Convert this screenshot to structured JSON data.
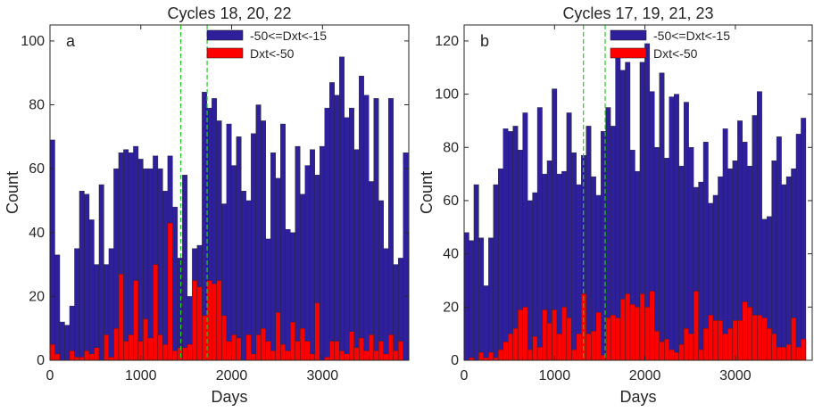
{
  "colors": {
    "bar_major": "#2e1f9b",
    "bar_minor": "#ff0000",
    "vline": "#22cc22",
    "axis": "#262626",
    "bar_edge": "#262626"
  },
  "chart_data": [
    {
      "type": "bar",
      "panel_label": "a",
      "title": "Cycles 18, 20, 22",
      "xlabel": "Days",
      "ylabel": "Count",
      "xlim": [
        0,
        3950
      ],
      "ylim": [
        0,
        105
      ],
      "xticks": [
        0,
        1000,
        2000,
        3000
      ],
      "yticks": [
        0,
        20,
        40,
        60,
        80,
        100
      ],
      "bin_width": 54,
      "vlines": [
        1440,
        1730
      ],
      "legend_position": "top-right",
      "series": [
        {
          "name": "-50<=Dxt<-15",
          "color": "#2e1f9b",
          "values": [
            69,
            33,
            12,
            11,
            17,
            35,
            53,
            52,
            44,
            30,
            55,
            30,
            35,
            60,
            65,
            66,
            65,
            67,
            63,
            60,
            60,
            64,
            60,
            53,
            64,
            48,
            32,
            58,
            20,
            35,
            36,
            84,
            79,
            82,
            75,
            49,
            74,
            61,
            70,
            53,
            50,
            71,
            80,
            75,
            38,
            65,
            57,
            74,
            41,
            40,
            67,
            52,
            61,
            66,
            58,
            67,
            79,
            87,
            83,
            95,
            76,
            79,
            66,
            89,
            83,
            56,
            82,
            50,
            35,
            82,
            30,
            32,
            65,
            40,
            73
          ]
        },
        {
          "name": "Dxt<-50",
          "color": "#ff0000",
          "values": [
            5,
            2,
            0,
            0,
            3,
            1,
            1,
            3,
            2,
            4,
            0,
            8,
            1,
            10,
            27,
            6,
            8,
            25,
            6,
            13,
            7,
            30,
            8,
            5,
            43,
            3,
            4,
            4,
            5,
            25,
            23,
            14,
            25,
            24,
            25,
            14,
            6,
            8,
            7,
            0,
            8,
            2,
            8,
            10,
            6,
            3,
            15,
            5,
            3,
            12,
            6,
            10,
            6,
            2,
            18,
            0,
            1,
            6,
            6,
            3,
            2,
            9,
            4,
            7,
            3,
            8,
            3,
            6,
            2,
            8,
            3,
            6,
            0,
            9,
            0
          ]
        }
      ]
    },
    {
      "type": "bar",
      "panel_label": "b",
      "title": "Cycles 17, 19, 21, 23",
      "xlabel": "Days",
      "ylabel": "Count",
      "xlim": [
        0,
        3850
      ],
      "ylim": [
        0,
        126
      ],
      "xticks": [
        0,
        1000,
        2000,
        3000
      ],
      "yticks": [
        0,
        20,
        40,
        60,
        80,
        100,
        120
      ],
      "bin_width": 54,
      "vlines": [
        1320,
        1560
      ],
      "legend_position": "top-right",
      "series": [
        {
          "name": "-50<=Dxt<-15",
          "color": "#2e1f9b",
          "values": [
            48,
            45,
            66,
            46,
            28,
            46,
            66,
            72,
            87,
            86,
            88,
            79,
            93,
            60,
            63,
            95,
            70,
            75,
            102,
            70,
            71,
            93,
            78,
            66,
            77,
            88,
            69,
            62,
            86,
            95,
            88,
            117,
            109,
            112,
            79,
            71,
            112,
            119,
            101,
            80,
            108,
            76,
            99,
            100,
            73,
            97,
            80,
            65,
            67,
            82,
            59,
            62,
            69,
            87,
            72,
            75,
            90,
            82,
            73,
            92,
            101,
            53,
            54,
            75,
            84,
            66,
            69,
            72,
            85,
            91
          ]
        },
        {
          "name": "Dxt<-50",
          "color": "#ff0000",
          "values": [
            0,
            1,
            0,
            3,
            1,
            3,
            1,
            4,
            7,
            10,
            12,
            19,
            20,
            4,
            9,
            5,
            19,
            14,
            19,
            10,
            20,
            16,
            4,
            10,
            25,
            10,
            11,
            18,
            2,
            16,
            17,
            16,
            23,
            25,
            21,
            20,
            25,
            20,
            26,
            11,
            7,
            8,
            4,
            3,
            6,
            12,
            10,
            26,
            4,
            12,
            17,
            15,
            15,
            10,
            12,
            15,
            15,
            22,
            20,
            17,
            17,
            16,
            12,
            10,
            5,
            5,
            6,
            16,
            5,
            8
          ]
        }
      ]
    }
  ]
}
